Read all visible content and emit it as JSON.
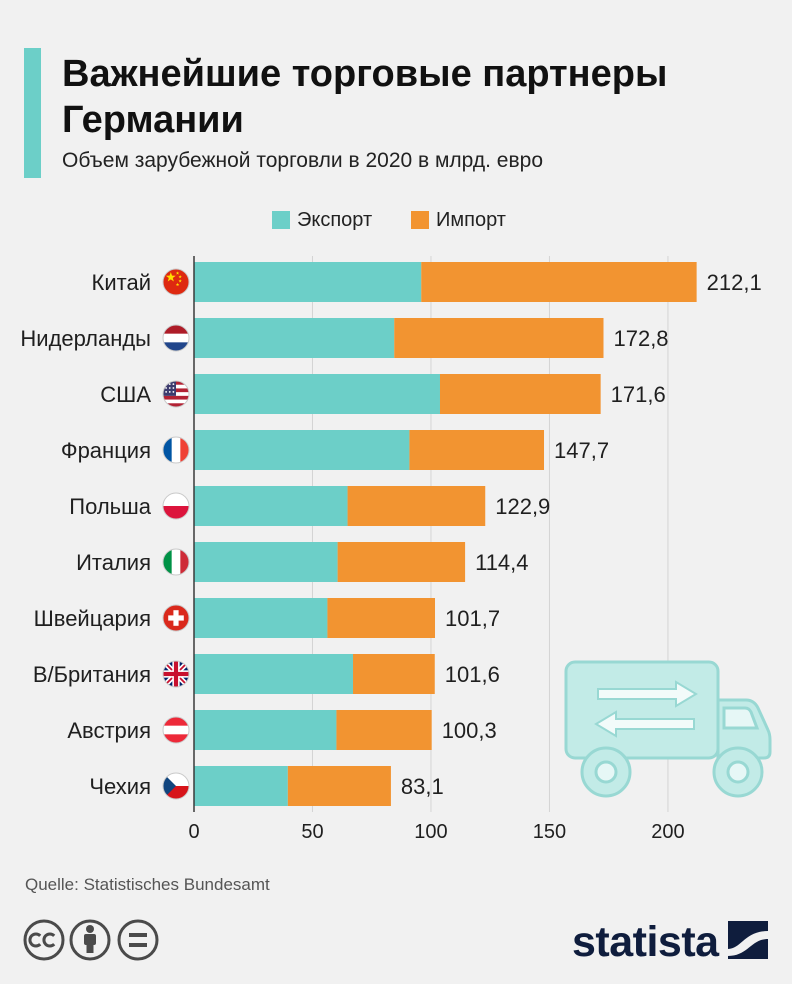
{
  "colors": {
    "accent": "#6ccfc8",
    "background": "#f1f1f1",
    "brand": "#0f1d3d"
  },
  "chart_data": {
    "type": "bar",
    "orientation": "horizontal",
    "stacked": true,
    "title": "Важнейшие торговые партнеры Германии",
    "subtitle": "Объем зарубежной торговли в 2020 в млрд. евро",
    "categories": [
      "Китай",
      "Нидерланды",
      "США",
      "Франция",
      "Польша",
      "Италия",
      "Швейцария",
      "В/Британия",
      "Австрия",
      "Чехия"
    ],
    "series": [
      {
        "name": "Экспорт",
        "color": "#6ccfc8",
        "values": [
          95.9,
          84.5,
          103.8,
          90.9,
          64.8,
          60.6,
          56.3,
          67.1,
          60.1,
          39.6
        ]
      },
      {
        "name": "Импорт",
        "color": "#f29431",
        "values": [
          116.2,
          88.3,
          67.8,
          56.8,
          58.1,
          53.8,
          45.4,
          34.5,
          40.2,
          43.5
        ]
      }
    ],
    "data_labels": [
      "212,1",
      "172,8",
      "171,6",
      "147,7",
      "122,9",
      "114,4",
      "101,7",
      "101,6",
      "100,3",
      "83,1"
    ],
    "xlim": [
      0,
      215
    ],
    "xticks": [
      0,
      50,
      100,
      150,
      200
    ],
    "grid": true,
    "legend": "top"
  },
  "flags": [
    "china-flag-icon",
    "netherlands-flag-icon",
    "usa-flag-icon",
    "france-flag-icon",
    "poland-flag-icon",
    "italy-flag-icon",
    "switzerland-flag-icon",
    "uk-flag-icon",
    "austria-flag-icon",
    "czechia-flag-icon"
  ],
  "source": "Quelle: Statistisches Bundesamt",
  "footer": {
    "license_icons": [
      "cc-license-icon",
      "attribution-icon",
      "no-derivatives-icon"
    ],
    "brand": "statista",
    "brand_icon": "statista-logo-icon"
  },
  "illustration": "delivery-truck-icon"
}
